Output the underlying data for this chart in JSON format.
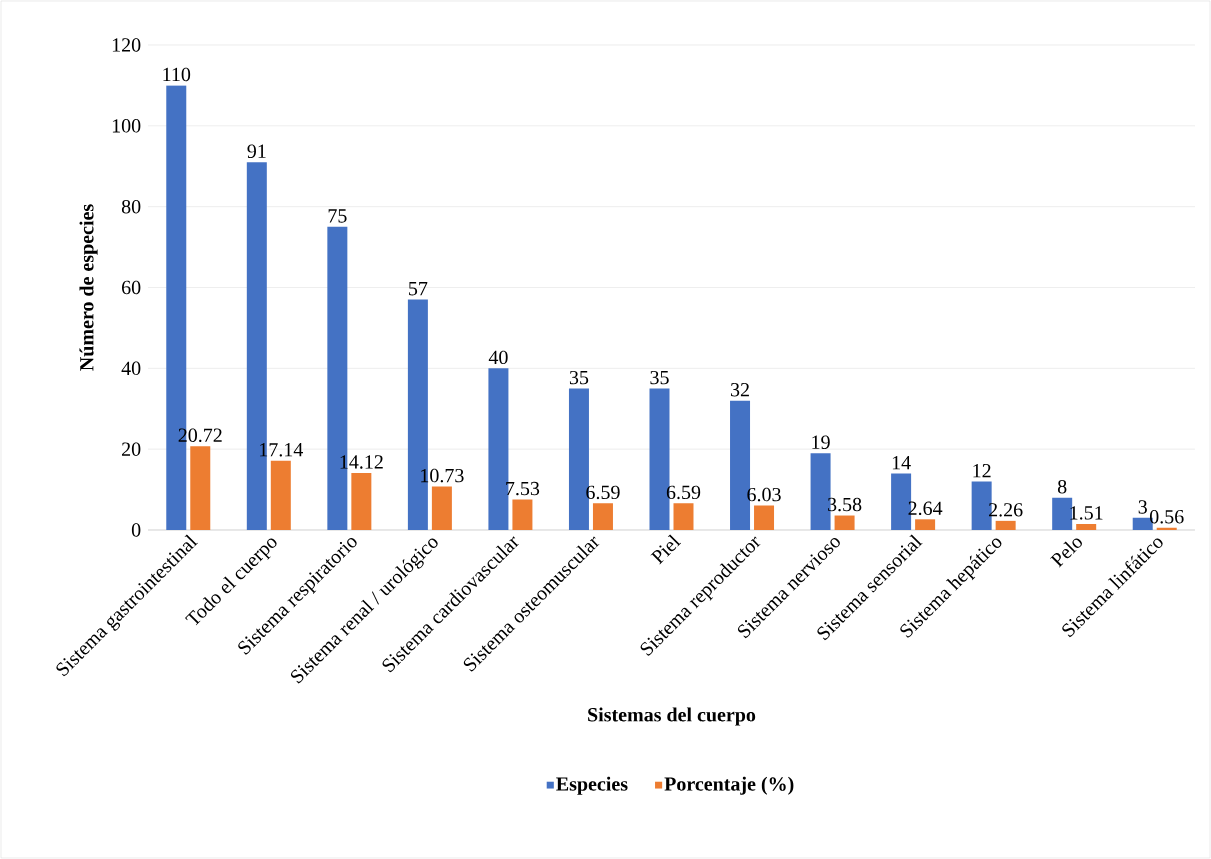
{
  "chart_data": {
    "type": "bar",
    "xlabel": "Sistemas del cuerpo",
    "ylabel": "Número de especies",
    "categories": [
      "Sistema gastrointestinal",
      "Todo el cuerpo",
      "Sistema respiratorio",
      "Sistema renal / urológico",
      "Sistema cardiovascular",
      "Sistema osteomuscular",
      "Piel",
      "Sistema reproductor",
      "Sistema nervioso",
      "Sistema sensorial",
      "Sistema hepático",
      "Pelo",
      "Sistema linfático"
    ],
    "series": [
      {
        "name": "Especies",
        "color": "#4472c4",
        "values": [
          110,
          91,
          75,
          57,
          40,
          35,
          35,
          32,
          19,
          14,
          12,
          8,
          3
        ]
      },
      {
        "name": "Porcentaje (%)",
        "color": "#ed7d31",
        "values": [
          20.72,
          17.14,
          14.12,
          10.73,
          7.53,
          6.59,
          6.59,
          6.03,
          3.58,
          2.64,
          2.26,
          1.51,
          0.56
        ]
      }
    ],
    "ylim": [
      0,
      120
    ],
    "yticks": [
      0,
      20,
      40,
      60,
      80,
      100,
      120
    ],
    "grid": "y",
    "legend": "bottom",
    "data_labels": true
  }
}
